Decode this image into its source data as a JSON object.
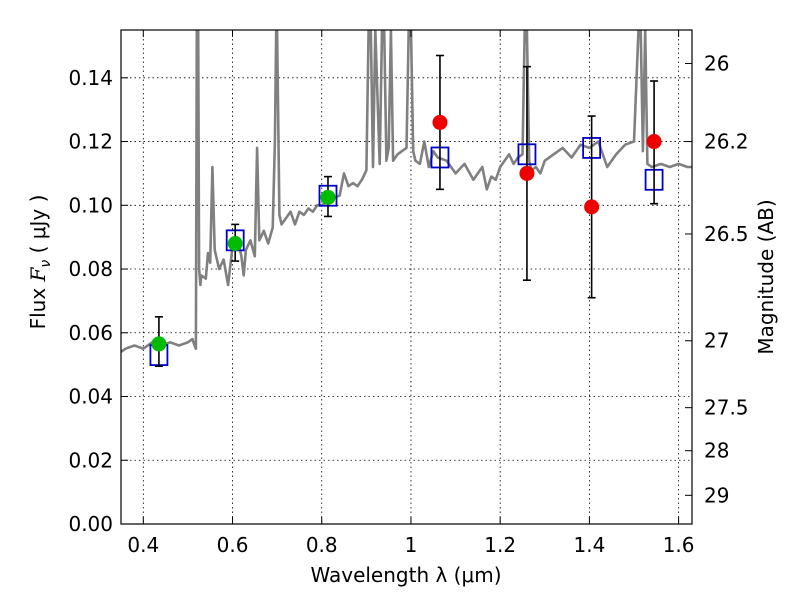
{
  "chart_data": {
    "type": "scatter",
    "xlabel": "Wavelength  λ (μm)",
    "ylabel_left": {
      "prefix": "Flux  ",
      "symbol": "F",
      "subscript": "ν",
      "suffix": "  ( μJy )"
    },
    "ylabel_right": "Magnitude (AB)",
    "xlim": [
      0.35,
      1.63
    ],
    "ylim": [
      0.0,
      0.155
    ],
    "grid": true,
    "x_ticks": [
      {
        "value": 0.4,
        "label": "0.4"
      },
      {
        "value": 0.6,
        "label": "0.6"
      },
      {
        "value": 0.8,
        "label": "0.8"
      },
      {
        "value": 1.0,
        "label": "1"
      },
      {
        "value": 1.2,
        "label": "1.2"
      },
      {
        "value": 1.4,
        "label": "1.4"
      },
      {
        "value": 1.6,
        "label": "1.6"
      }
    ],
    "y_ticks": [
      {
        "value": 0.0,
        "label": "0.00"
      },
      {
        "value": 0.02,
        "label": "0.02"
      },
      {
        "value": 0.04,
        "label": "0.04"
      },
      {
        "value": 0.06,
        "label": "0.06"
      },
      {
        "value": 0.08,
        "label": "0.08"
      },
      {
        "value": 0.1,
        "label": "0.10"
      },
      {
        "value": 0.12,
        "label": "0.12"
      },
      {
        "value": 0.14,
        "label": "0.14"
      }
    ],
    "right_ticks": [
      {
        "flux": 0.1445,
        "label": "26"
      },
      {
        "flux": 0.12,
        "label": "26.2"
      },
      {
        "flux": 0.091,
        "label": "26.5"
      },
      {
        "flux": 0.0575,
        "label": "27"
      },
      {
        "flux": 0.0365,
        "label": "27.5"
      },
      {
        "flux": 0.023,
        "label": "28"
      },
      {
        "flux": 0.009,
        "label": "29"
      }
    ],
    "colors": {
      "spectrum": "#808080",
      "model": "#0000cc",
      "green": "#00bb00",
      "red": "#ee0000",
      "errorbar": "#000000"
    },
    "series": [
      {
        "name": "model spectrum",
        "style": "line",
        "x": [
          0.35,
          0.36,
          0.38,
          0.4,
          0.42,
          0.44,
          0.46,
          0.48,
          0.5,
          0.51,
          0.515,
          0.518,
          0.52,
          0.523,
          0.525,
          0.528,
          0.53,
          0.54,
          0.545,
          0.55,
          0.555,
          0.56,
          0.57,
          0.58,
          0.59,
          0.6,
          0.61,
          0.62,
          0.625,
          0.63,
          0.64,
          0.65,
          0.655,
          0.66,
          0.67,
          0.68,
          0.69,
          0.695,
          0.698,
          0.7,
          0.705,
          0.71,
          0.72,
          0.73,
          0.74,
          0.75,
          0.76,
          0.77,
          0.78,
          0.79,
          0.8,
          0.82,
          0.84,
          0.85,
          0.86,
          0.87,
          0.88,
          0.89,
          0.9,
          0.905,
          0.91,
          0.915,
          0.92,
          0.93,
          0.935,
          0.94,
          0.945,
          0.95,
          0.955,
          0.96,
          0.97,
          0.98,
          0.99,
          0.995,
          1.0,
          1.005,
          1.01,
          1.02,
          1.03,
          1.04,
          1.05,
          1.06,
          1.08,
          1.1,
          1.12,
          1.14,
          1.16,
          1.17,
          1.18,
          1.19,
          1.2,
          1.21,
          1.22,
          1.23,
          1.24,
          1.25,
          1.255,
          1.26,
          1.265,
          1.27,
          1.28,
          1.29,
          1.3,
          1.32,
          1.34,
          1.36,
          1.38,
          1.4,
          1.42,
          1.44,
          1.46,
          1.48,
          1.5,
          1.51,
          1.515,
          1.52,
          1.525,
          1.53,
          1.54,
          1.56,
          1.58,
          1.6,
          1.62,
          1.63
        ],
        "y": [
          0.054,
          0.055,
          0.056,
          0.055,
          0.057,
          0.056,
          0.057,
          0.056,
          0.057,
          0.058,
          0.056,
          0.055,
          0.155,
          0.155,
          0.08,
          0.075,
          0.078,
          0.077,
          0.085,
          0.082,
          0.112,
          0.086,
          0.08,
          0.083,
          0.075,
          0.087,
          0.09,
          0.084,
          0.078,
          0.086,
          0.089,
          0.084,
          0.118,
          0.089,
          0.092,
          0.088,
          0.093,
          0.12,
          0.155,
          0.155,
          0.097,
          0.094,
          0.096,
          0.098,
          0.094,
          0.098,
          0.097,
          0.099,
          0.098,
          0.1,
          0.1,
          0.102,
          0.103,
          0.11,
          0.106,
          0.107,
          0.106,
          0.108,
          0.111,
          0.155,
          0.155,
          0.112,
          0.155,
          0.113,
          0.155,
          0.155,
          0.114,
          0.118,
          0.155,
          0.114,
          0.116,
          0.117,
          0.118,
          0.155,
          0.155,
          0.117,
          0.114,
          0.113,
          0.12,
          0.112,
          0.117,
          0.115,
          0.114,
          0.11,
          0.113,
          0.108,
          0.112,
          0.105,
          0.109,
          0.108,
          0.112,
          0.114,
          0.116,
          0.113,
          0.115,
          0.116,
          0.155,
          0.155,
          0.114,
          0.111,
          0.112,
          0.11,
          0.114,
          0.116,
          0.118,
          0.115,
          0.119,
          0.118,
          0.12,
          0.112,
          0.116,
          0.119,
          0.12,
          0.155,
          0.155,
          0.117,
          0.155,
          0.113,
          0.112,
          0.113,
          0.112,
          0.113,
          0.112,
          0.112
        ]
      },
      {
        "name": "model magnitudes",
        "style": "open-square",
        "x": [
          0.435,
          0.606,
          0.814,
          1.065,
          1.26,
          1.405,
          1.545
        ],
        "y": [
          0.053,
          0.089,
          0.103,
          0.115,
          0.116,
          0.118,
          0.108
        ]
      },
      {
        "name": "observed (green)",
        "style": "filled-circle",
        "x": [
          0.435,
          0.606,
          0.814
        ],
        "y": [
          0.0565,
          0.088,
          0.1025
        ],
        "yerr_low": [
          0.0495,
          0.0825,
          0.0965
        ],
        "yerr_high": [
          0.065,
          0.094,
          0.109
        ]
      },
      {
        "name": "observed (red)",
        "style": "filled-circle",
        "x": [
          1.065,
          1.26,
          1.405,
          1.545
        ],
        "y": [
          0.126,
          0.11,
          0.0995,
          0.12
        ],
        "yerr_low": [
          0.105,
          0.0765,
          0.071,
          0.1005
        ],
        "yerr_high": [
          0.147,
          0.1435,
          0.128,
          0.139
        ]
      }
    ]
  }
}
